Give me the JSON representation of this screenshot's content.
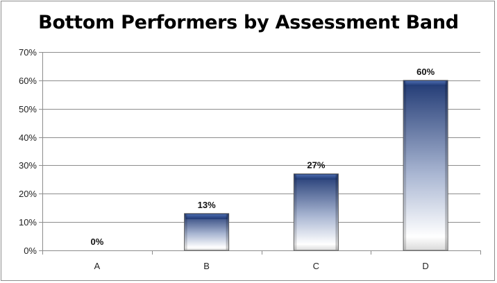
{
  "chart_data": {
    "type": "bar",
    "title": "Bottom Performers by Assessment Band",
    "xlabel": "",
    "ylabel": "",
    "categories": [
      "A",
      "B",
      "C",
      "D"
    ],
    "values": [
      0,
      13,
      27,
      60
    ],
    "data_labels": [
      "0%",
      "13%",
      "27%",
      "60%"
    ],
    "ylim": [
      0,
      70
    ],
    "yticks": [
      0,
      10,
      20,
      30,
      40,
      50,
      60,
      70
    ],
    "ytick_labels": [
      "0%",
      "10%",
      "20%",
      "30%",
      "40%",
      "50%",
      "60%",
      "70%"
    ],
    "grid": true,
    "legend": "none",
    "colors": {
      "bar_dark": "#1f3873",
      "bar_light": "#ffffff",
      "grid": "#8c8c8c"
    }
  }
}
